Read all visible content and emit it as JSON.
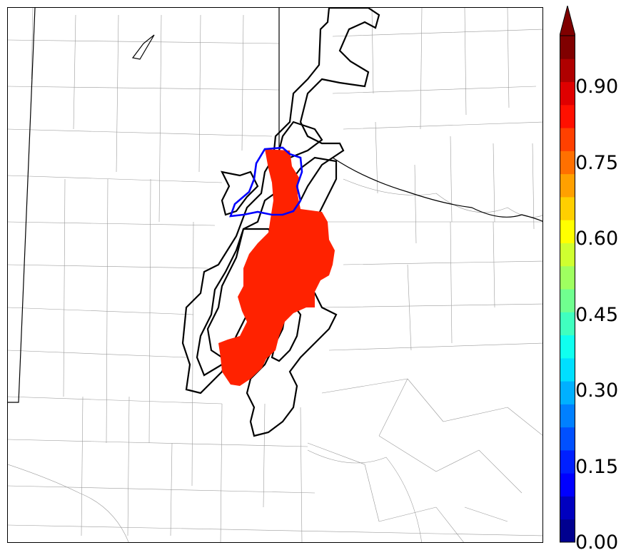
{
  "colorbar": {
    "tick_labels": [
      "0.00",
      "0.15",
      "0.30",
      "0.45",
      "0.60",
      "0.75",
      "0.90"
    ],
    "tick_values": [
      0.0,
      0.15,
      0.3,
      0.45,
      0.6,
      0.75,
      0.9
    ],
    "range": [
      0.0,
      1.0
    ],
    "extend": "max",
    "bin_colors": [
      "#00008f",
      "#0000bf",
      "#0000ff",
      "#0020ff",
      "#0050ff",
      "#0080ff",
      "#00b0ff",
      "#00dfff",
      "#10ffef",
      "#40ffbf",
      "#70ff8f",
      "#9fff60",
      "#cfff30",
      "#ffff00",
      "#ffcf00",
      "#ffa000",
      "#ff7000",
      "#ff4000",
      "#ff1000",
      "#df0000",
      "#af0000",
      "#800000"
    ]
  },
  "map": {
    "probability_region_color": "#ff2200",
    "blue_contour_color": "#0000ff",
    "ensemble_contour_color": "#000000"
  }
}
